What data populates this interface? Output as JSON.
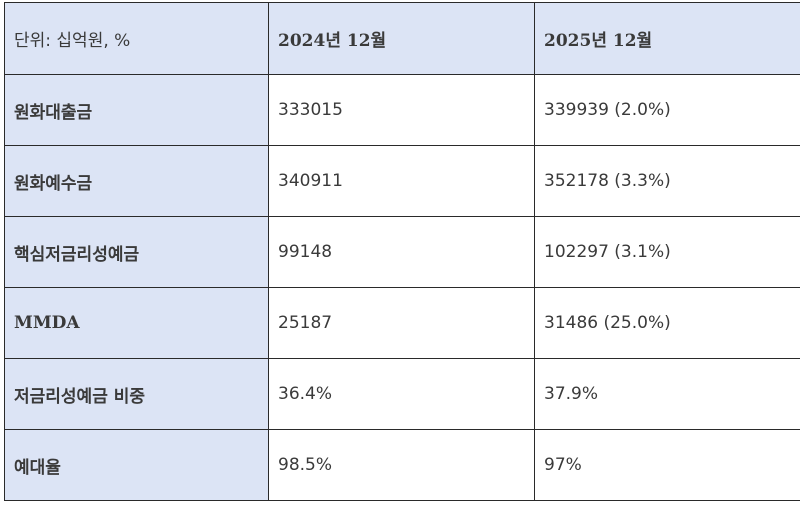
{
  "table": {
    "header": {
      "unit_label": "단위: 십억원, %",
      "col1": "2024년 12월",
      "col2": "2025년 12월"
    },
    "rows": [
      {
        "label": "원화대출금",
        "v2024": "333015",
        "v2025": "339939 (2.0%)"
      },
      {
        "label": "원화예수금",
        "v2024": "340911",
        "v2025": "352178 (3.3%)"
      },
      {
        "label": "핵심저금리성예금",
        "v2024": "99148",
        "v2025": "102297 (3.1%)"
      },
      {
        "label": "MMDA",
        "v2024": "25187",
        "v2025": "31486 (25.0%)"
      },
      {
        "label": "저금리성예금 비중",
        "v2024": "36.4%",
        "v2025": "37.9%"
      },
      {
        "label": "예대율",
        "v2024": "98.5%",
        "v2025": "97%"
      }
    ]
  },
  "colors": {
    "header_bg": "#dce4f5",
    "label_bg": "#dce4f5",
    "border": "#2a2a2a",
    "text": "#3a3a3a"
  }
}
